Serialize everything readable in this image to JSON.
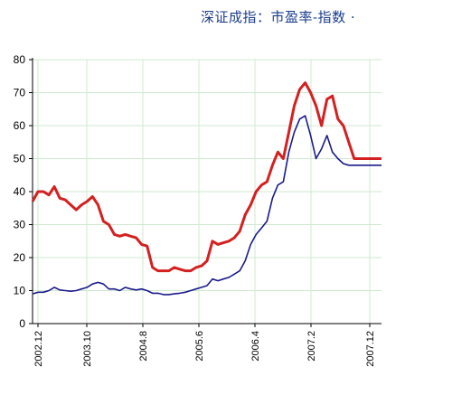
{
  "chart_data": {
    "type": "line",
    "title": "深证成指：市盈率-指数 ·",
    "xlabel": "",
    "ylabel": "",
    "ylim": [
      0,
      80
    ],
    "y_ticks": [
      0,
      10,
      20,
      30,
      40,
      50,
      60,
      70,
      80
    ],
    "x_tick_labels": [
      "2002.12",
      "2003.10",
      "2004.8",
      "2005.6",
      "2006.4",
      "2007.2",
      "2007.12"
    ],
    "x_range": [
      0,
      64
    ],
    "grid": true,
    "series": [
      {
        "color": "#d42020",
        "x": [
          0,
          1,
          2,
          3,
          4,
          5,
          6,
          7,
          8,
          9,
          10,
          11,
          12,
          13,
          14,
          15,
          16,
          17,
          18,
          19,
          20,
          21,
          22,
          23,
          24,
          25,
          26,
          27,
          28,
          29,
          30,
          31,
          32,
          33,
          34,
          35,
          36,
          37,
          38,
          39,
          40,
          41,
          42,
          43,
          44,
          45,
          46,
          47,
          48,
          49,
          50,
          51,
          52,
          53,
          54,
          55,
          56,
          57,
          58,
          59,
          60,
          61,
          62,
          63,
          64
        ],
        "values": [
          37,
          40,
          40,
          39,
          41.5,
          38,
          37.5,
          36,
          34.5,
          36,
          37,
          38.5,
          36,
          31,
          30,
          27,
          26.5,
          27,
          26.5,
          26,
          24,
          23.5,
          17,
          16,
          16,
          16,
          17,
          16.5,
          16,
          16,
          17,
          17.5,
          19,
          25,
          24,
          24.5,
          25,
          26,
          28,
          33,
          36,
          40,
          42,
          43,
          48,
          52,
          50,
          58,
          66,
          71,
          73,
          70,
          66,
          60,
          68,
          69,
          62,
          60,
          55,
          50,
          50,
          50,
          50,
          50,
          50
        ]
      },
      {
        "color": "#1a1a8c",
        "x": [
          0,
          1,
          2,
          3,
          4,
          5,
          6,
          7,
          8,
          9,
          10,
          11,
          12,
          13,
          14,
          15,
          16,
          17,
          18,
          19,
          20,
          21,
          22,
          23,
          24,
          25,
          26,
          27,
          28,
          29,
          30,
          31,
          32,
          33,
          34,
          35,
          36,
          37,
          38,
          39,
          40,
          41,
          42,
          43,
          44,
          45,
          46,
          47,
          48,
          49,
          50,
          51,
          52,
          53,
          54,
          55,
          56,
          57,
          58,
          59,
          60,
          61,
          62,
          63,
          64
        ],
        "values": [
          9,
          9.5,
          9.5,
          10,
          11,
          10.2,
          10,
          9.8,
          10,
          10.5,
          11,
          12,
          12.5,
          12,
          10.5,
          10.5,
          10,
          11,
          10.5,
          10.2,
          10.5,
          10,
          9.2,
          9.2,
          8.8,
          8.8,
          9,
          9.2,
          9.5,
          10,
          10.5,
          11,
          11.5,
          13.5,
          13,
          13.5,
          14,
          15,
          16,
          19,
          24,
          27,
          29,
          31,
          38,
          42,
          43,
          52,
          58,
          62,
          63,
          57,
          50,
          53,
          57,
          52,
          50,
          48.5,
          48,
          48,
          48,
          48,
          48,
          48,
          48
        ]
      }
    ]
  }
}
